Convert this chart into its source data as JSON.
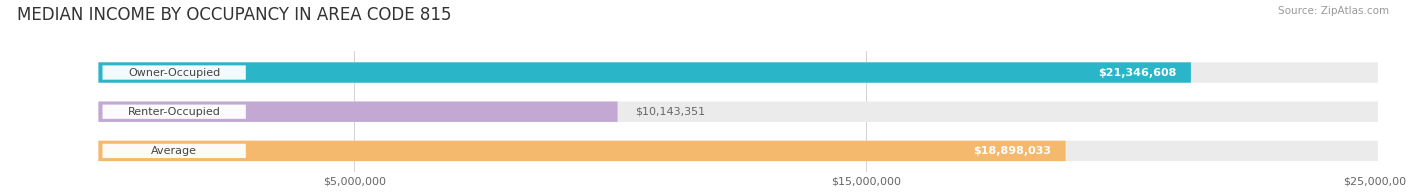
{
  "title": "MEDIAN INCOME BY OCCUPANCY IN AREA CODE 815",
  "source": "Source: ZipAtlas.com",
  "categories": [
    "Owner-Occupied",
    "Renter-Occupied",
    "Average"
  ],
  "values": [
    21346608,
    10143351,
    18898033
  ],
  "bar_colors": [
    "#2ab5c8",
    "#c4a8d4",
    "#f5b96e"
  ],
  "bar_bg_color": "#ebebeb",
  "value_labels": [
    "$21,346,608",
    "$10,143,351",
    "$18,898,033"
  ],
  "xlim": [
    0,
    25000000
  ],
  "xticks": [
    5000000,
    15000000,
    25000000
  ],
  "xtick_labels": [
    "$5,000,000",
    "$15,000,000",
    "$25,000,000"
  ],
  "background_color": "#ffffff",
  "title_fontsize": 12,
  "label_fontsize": 8,
  "value_fontsize": 8,
  "source_fontsize": 7.5
}
